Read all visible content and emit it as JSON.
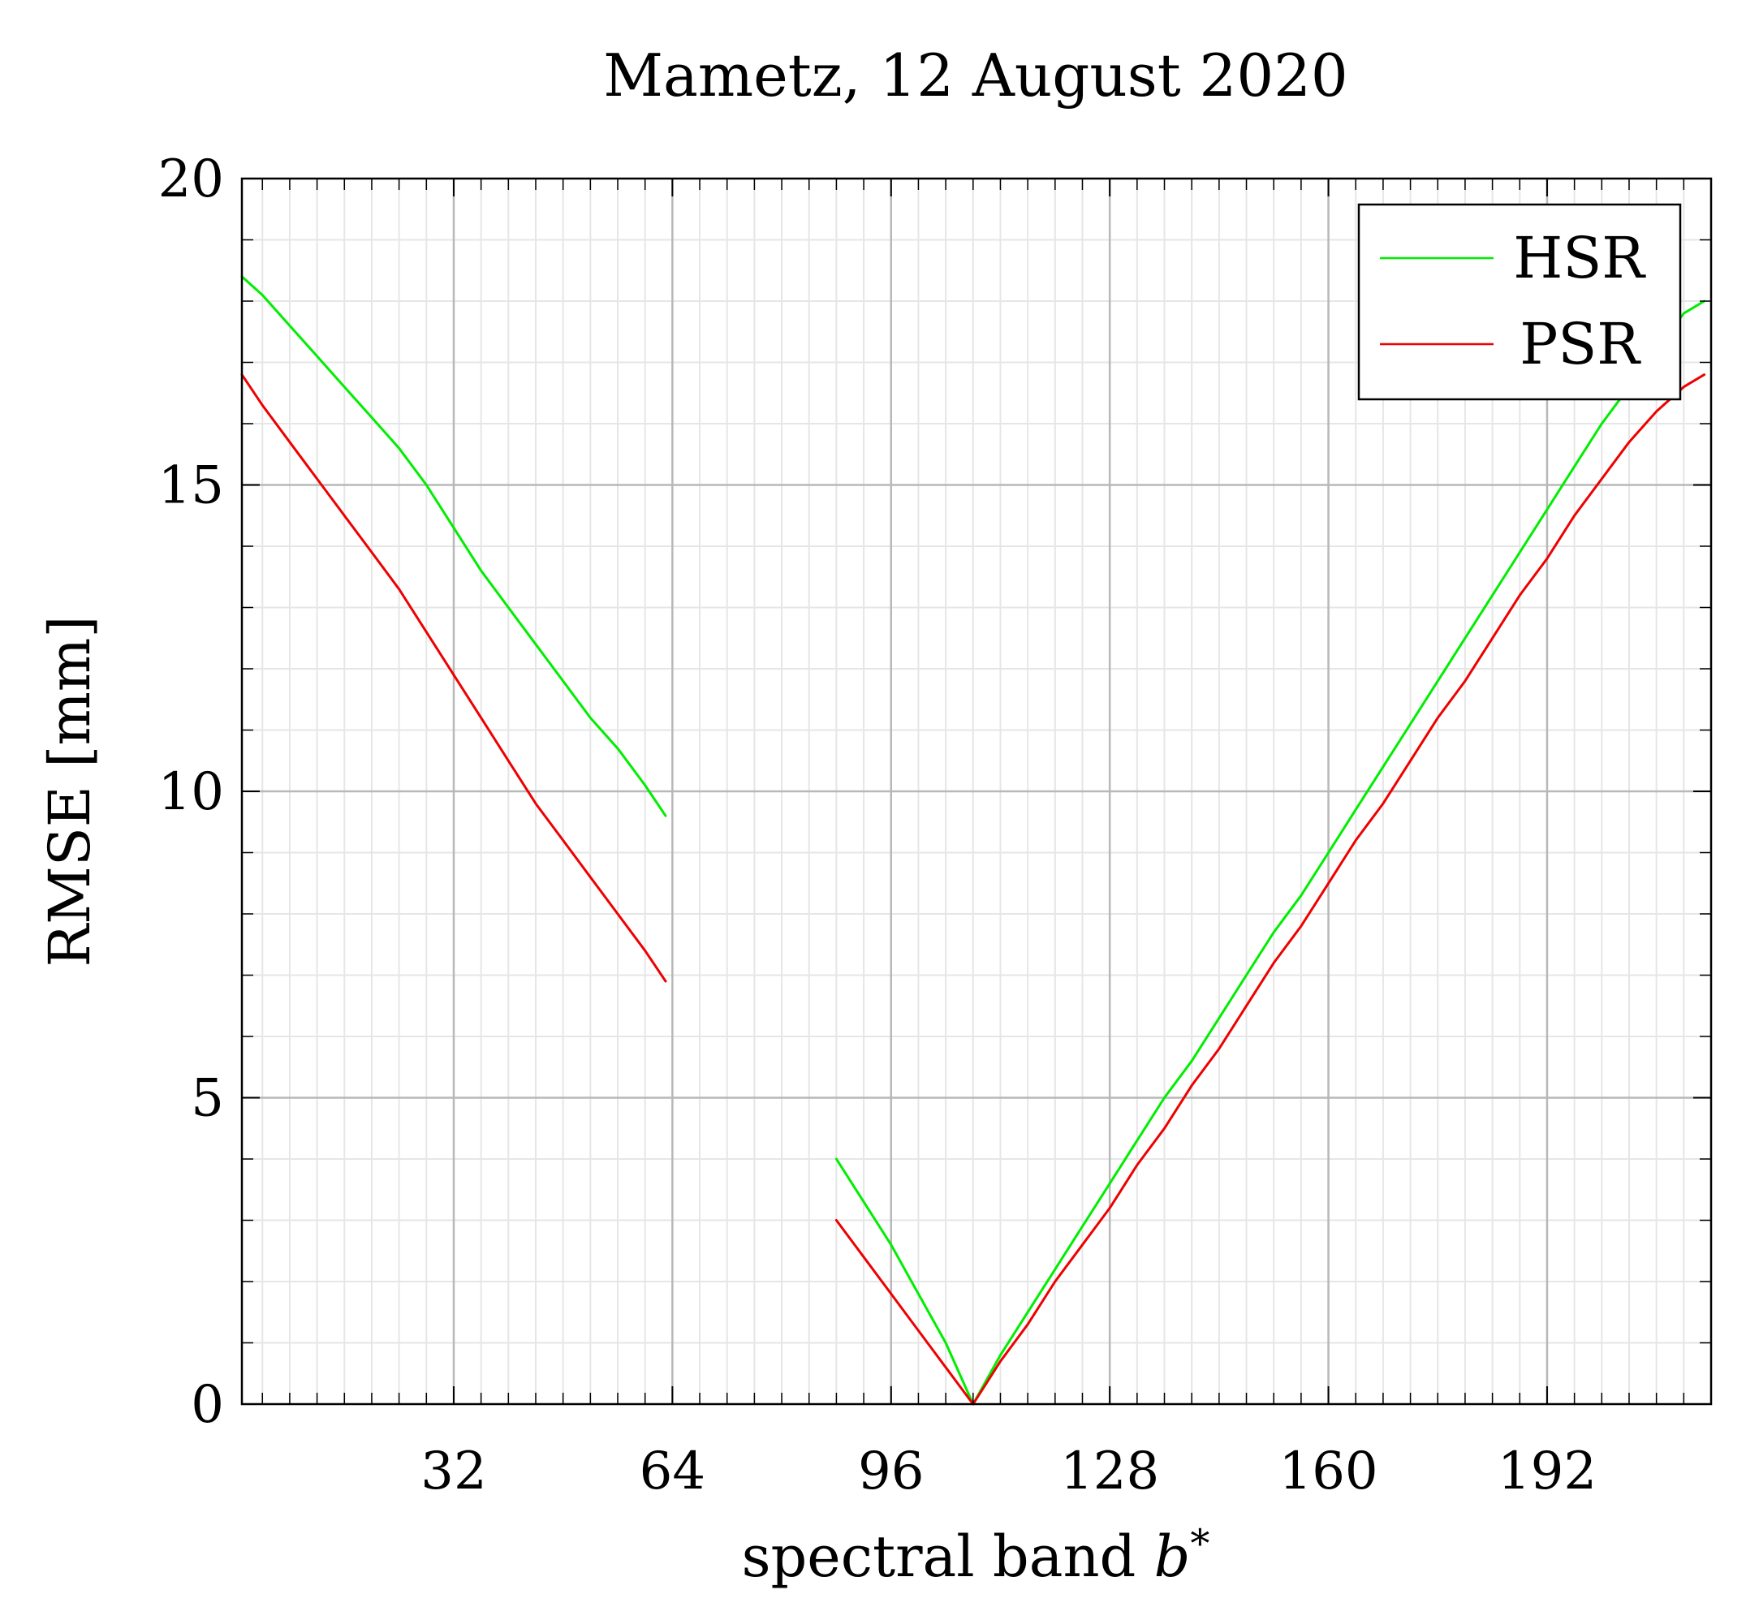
{
  "chart_data": {
    "type": "line",
    "title": "Mametz, 12 August 2020",
    "xlabel": "spectral band b*",
    "xlabel_main": "spectral band ",
    "xlabel_var": "b",
    "xlabel_sup": "*",
    "ylabel": "RMSE [mm]",
    "xlim": [
      1,
      216
    ],
    "ylim": [
      0,
      20
    ],
    "x_ticks": [
      32,
      64,
      96,
      128,
      160,
      192
    ],
    "x_tick_labels": [
      "32",
      "64",
      "96",
      "128",
      "160",
      "192"
    ],
    "y_ticks": [
      0,
      5,
      10,
      15,
      20
    ],
    "y_tick_labels": [
      "0",
      "5",
      "10",
      "15",
      "20"
    ],
    "grid": true,
    "legend_position": "top-right",
    "colors": {
      "HSR": "#00ee00",
      "PSR": "#ee0000"
    },
    "series": [
      {
        "name": "HSR",
        "color": "#00ee00",
        "segments": [
          [
            [
              1,
              18.4
            ],
            [
              4,
              18.1
            ],
            [
              8,
              17.6
            ],
            [
              12,
              17.1
            ],
            [
              16,
              16.6
            ],
            [
              20,
              16.1
            ],
            [
              24,
              15.6
            ],
            [
              28,
              15.0
            ],
            [
              32,
              14.3
            ],
            [
              36,
              13.6
            ],
            [
              40,
              13.0
            ],
            [
              44,
              12.4
            ],
            [
              48,
              11.8
            ],
            [
              52,
              11.2
            ],
            [
              56,
              10.7
            ],
            [
              60,
              10.1
            ],
            [
              63,
              9.6
            ]
          ],
          [
            [
              88,
              4.0
            ],
            [
              92,
              3.3
            ],
            [
              96,
              2.6
            ],
            [
              100,
              1.8
            ],
            [
              104,
              1.0
            ],
            [
              108,
              0.0
            ],
            [
              112,
              0.8
            ],
            [
              116,
              1.5
            ],
            [
              120,
              2.2
            ],
            [
              124,
              2.9
            ],
            [
              128,
              3.6
            ],
            [
              132,
              4.3
            ],
            [
              136,
              5.0
            ],
            [
              140,
              5.6
            ],
            [
              144,
              6.3
            ],
            [
              148,
              7.0
            ],
            [
              152,
              7.7
            ],
            [
              156,
              8.3
            ],
            [
              160,
              9.0
            ],
            [
              164,
              9.7
            ],
            [
              168,
              10.4
            ],
            [
              172,
              11.1
            ],
            [
              176,
              11.8
            ],
            [
              180,
              12.5
            ],
            [
              184,
              13.2
            ],
            [
              188,
              13.9
            ],
            [
              192,
              14.6
            ],
            [
              196,
              15.3
            ],
            [
              200,
              16.0
            ],
            [
              204,
              16.6
            ],
            [
              208,
              17.2
            ],
            [
              212,
              17.8
            ],
            [
              215,
              18.0
            ]
          ]
        ]
      },
      {
        "name": "PSR",
        "color": "#ee0000",
        "segments": [
          [
            [
              1,
              16.8
            ],
            [
              4,
              16.3
            ],
            [
              8,
              15.7
            ],
            [
              12,
              15.1
            ],
            [
              16,
              14.5
            ],
            [
              20,
              13.9
            ],
            [
              24,
              13.3
            ],
            [
              28,
              12.6
            ],
            [
              32,
              11.9
            ],
            [
              36,
              11.2
            ],
            [
              40,
              10.5
            ],
            [
              44,
              9.8
            ],
            [
              48,
              9.2
            ],
            [
              52,
              8.6
            ],
            [
              56,
              8.0
            ],
            [
              60,
              7.4
            ],
            [
              63,
              6.9
            ]
          ],
          [
            [
              88,
              3.0
            ],
            [
              92,
              2.4
            ],
            [
              96,
              1.8
            ],
            [
              100,
              1.2
            ],
            [
              104,
              0.6
            ],
            [
              108,
              0.0
            ],
            [
              112,
              0.7
            ],
            [
              116,
              1.3
            ],
            [
              120,
              2.0
            ],
            [
              124,
              2.6
            ],
            [
              128,
              3.2
            ],
            [
              132,
              3.9
            ],
            [
              136,
              4.5
            ],
            [
              140,
              5.2
            ],
            [
              144,
              5.8
            ],
            [
              148,
              6.5
            ],
            [
              152,
              7.2
            ],
            [
              156,
              7.8
            ],
            [
              160,
              8.5
            ],
            [
              164,
              9.2
            ],
            [
              168,
              9.8
            ],
            [
              172,
              10.5
            ],
            [
              176,
              11.2
            ],
            [
              180,
              11.8
            ],
            [
              184,
              12.5
            ],
            [
              188,
              13.2
            ],
            [
              192,
              13.8
            ],
            [
              196,
              14.5
            ],
            [
              200,
              15.1
            ],
            [
              204,
              15.7
            ],
            [
              208,
              16.2
            ],
            [
              212,
              16.6
            ],
            [
              215,
              16.8
            ]
          ]
        ]
      }
    ]
  }
}
